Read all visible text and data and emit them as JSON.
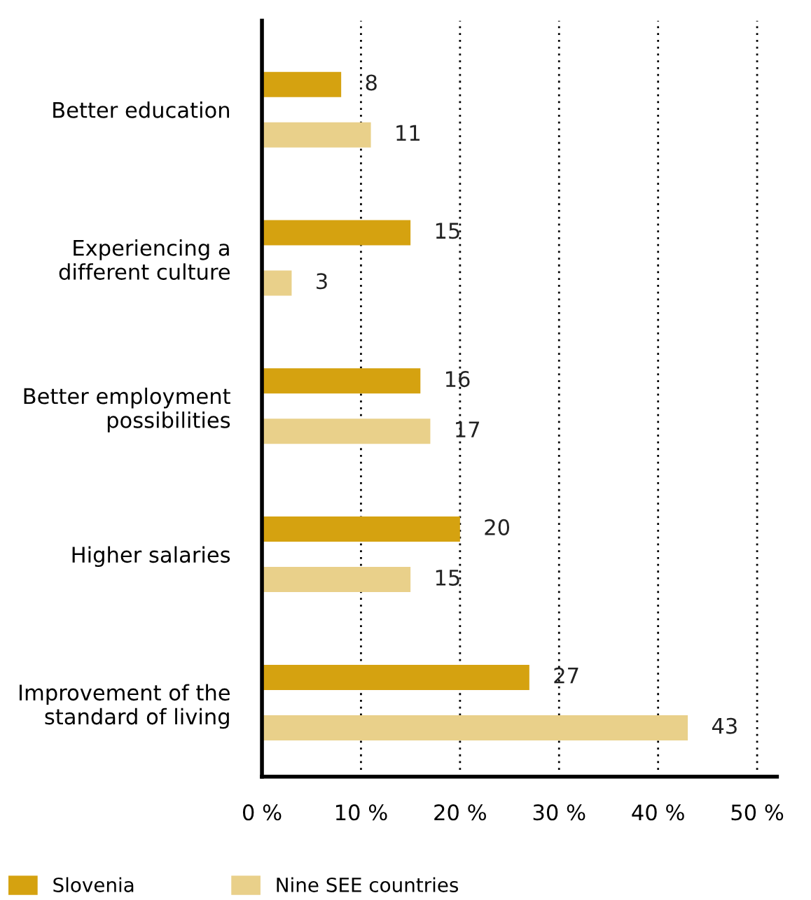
{
  "chart_data": {
    "type": "bar",
    "orientation": "horizontal",
    "categories": [
      "Better education",
      "Experiencing a\ndifferent culture",
      "Better employment\npossibilities",
      "Higher salaries",
      "Improvement of the\nstandard of living"
    ],
    "series": [
      {
        "name": "Slovenia",
        "color": "#d5a210",
        "values": [
          8,
          15,
          16,
          20,
          27
        ]
      },
      {
        "name": "Nine SEE countries",
        "color": "#e9d08a",
        "values": [
          11,
          3,
          17,
          15,
          43
        ]
      }
    ],
    "xlim": [
      0,
      52
    ],
    "xticks": [
      {
        "value": 0,
        "label": "0 %"
      },
      {
        "value": 10,
        "label": "10 %"
      },
      {
        "value": 20,
        "label": "20 %"
      },
      {
        "value": 30,
        "label": "30 %"
      },
      {
        "value": 40,
        "label": "40 %"
      },
      {
        "value": 50,
        "label": "50 %"
      }
    ],
    "grid": "x",
    "legend": "bottom",
    "data_labels": true
  }
}
